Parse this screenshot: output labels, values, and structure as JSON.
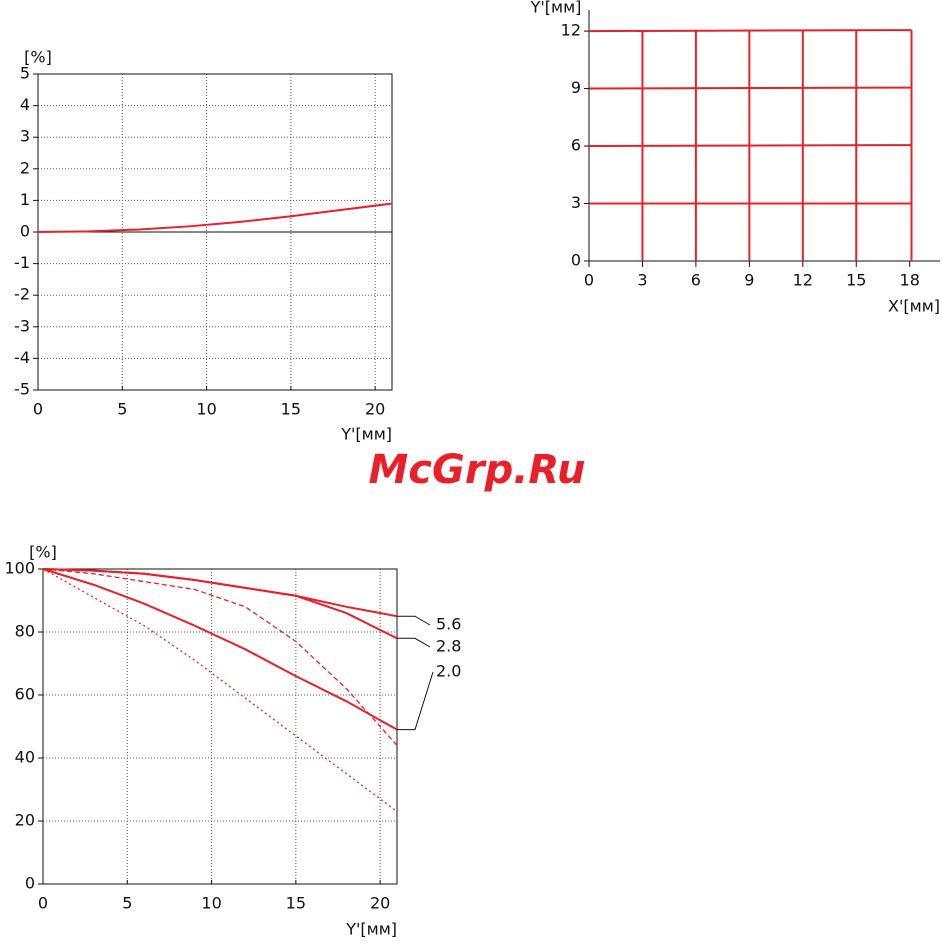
{
  "watermark": "McGrp.Ru",
  "chart_data": [
    {
      "type": "line",
      "y_label": "[%]",
      "x_label": "Y'[мм]",
      "x": [
        0,
        3,
        6,
        9,
        12,
        15,
        18,
        21
      ],
      "series": [
        {
          "color": "#e8202a",
          "style": "solid",
          "values": [
            0,
            0.02,
            0.08,
            0.18,
            0.32,
            0.5,
            0.7,
            0.9
          ]
        }
      ],
      "xlim": [
        0,
        21
      ],
      "ylim": [
        -5,
        5
      ],
      "xticks": [
        0,
        5,
        10,
        15,
        20
      ],
      "yticks": [
        -5,
        -4,
        -3,
        -2,
        -1,
        0,
        1,
        2,
        3,
        4,
        5
      ],
      "grid": true,
      "frame": true,
      "zero_line": true
    },
    {
      "type": "line",
      "y_label": "Y'[мм]",
      "x_label": "X'[мм]",
      "series": [
        {
          "color": "#e8202a",
          "style": "solid",
          "x": [
            0,
            18.1
          ],
          "values": [
            3,
            3
          ]
        },
        {
          "color": "#e8202a",
          "style": "solid",
          "x": [
            0,
            18.1
          ],
          "values": [
            6,
            6.05
          ]
        },
        {
          "color": "#e8202a",
          "style": "solid",
          "x": [
            0,
            18.1
          ],
          "values": [
            9,
            9.05
          ]
        },
        {
          "color": "#e8202a",
          "style": "solid",
          "x": [
            0,
            18.1
          ],
          "values": [
            12,
            12.05
          ]
        },
        {
          "color": "#e8202a",
          "style": "solid",
          "x": [
            3,
            3
          ],
          "values": [
            0,
            12
          ]
        },
        {
          "color": "#e8202a",
          "style": "solid",
          "x": [
            6,
            6
          ],
          "values": [
            0,
            12
          ]
        },
        {
          "color": "#e8202a",
          "style": "solid",
          "x": [
            9,
            9
          ],
          "values": [
            0,
            12
          ]
        },
        {
          "color": "#e8202a",
          "style": "solid",
          "x": [
            12,
            12
          ],
          "values": [
            0,
            12
          ]
        },
        {
          "color": "#e8202a",
          "style": "solid",
          "x": [
            15,
            15
          ],
          "values": [
            0,
            12
          ]
        },
        {
          "color": "#e8202a",
          "style": "solid",
          "x": [
            18.1,
            18.1
          ],
          "values": [
            0,
            12.05
          ]
        }
      ],
      "xlim": [
        0,
        19.7
      ],
      "ylim": [
        0,
        13.1
      ],
      "xticks": [
        0,
        3,
        6,
        9,
        12,
        15,
        18
      ],
      "yticks": [
        0,
        3,
        6,
        9,
        12
      ],
      "grid": false,
      "frame": false,
      "zero_line": false
    },
    {
      "type": "line",
      "y_label": "[%]",
      "x_label": "Y'[мм]",
      "x": [
        0,
        3,
        6,
        9,
        12,
        15,
        18,
        21
      ],
      "series": [
        {
          "name": "5.6",
          "color": "#e8202a",
          "style": "solid",
          "values": [
            100,
            99.5,
            98.5,
            96.5,
            94,
            91.5,
            88,
            85
          ]
        },
        {
          "name": "2.8",
          "color": "#e8202a",
          "style": "solid",
          "values": [
            100,
            99.5,
            98.5,
            96.5,
            94,
            91.5,
            86,
            78
          ]
        },
        {
          "name": "2.0",
          "color": "#e8202a",
          "style": "solid",
          "values": [
            100,
            95,
            89,
            82,
            74.5,
            66,
            58,
            49
          ]
        },
        {
          "color": "#e8202a",
          "style": "dashed",
          "values": [
            100,
            98.5,
            96,
            93.5,
            88,
            77,
            62,
            44
          ]
        },
        {
          "color": "#e8202a",
          "style": "dotted",
          "values": [
            100,
            91,
            82,
            71,
            59,
            47,
            35,
            23
          ]
        }
      ],
      "xlim": [
        0,
        21
      ],
      "ylim": [
        0,
        100
      ],
      "xticks": [
        0,
        5,
        10,
        15,
        20
      ],
      "yticks": [
        0,
        20,
        40,
        60,
        80,
        100
      ],
      "grid": true,
      "frame": true,
      "zero_line": false
    }
  ]
}
